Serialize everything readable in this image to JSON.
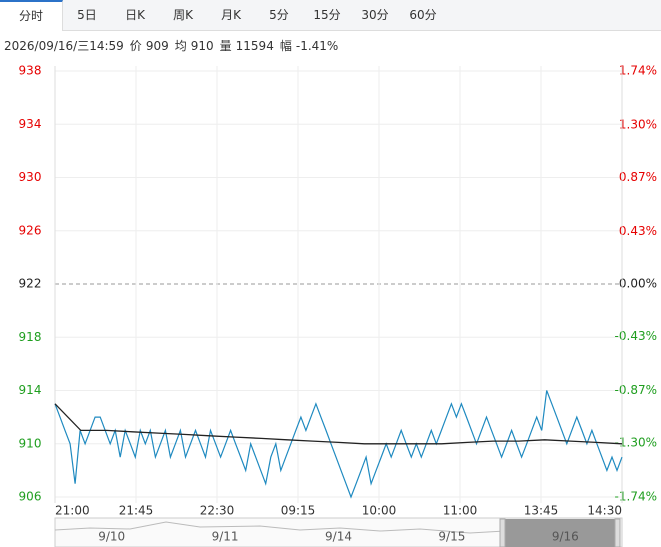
{
  "tabs": [
    "分时",
    "5日",
    "日K",
    "周K",
    "月K",
    "5分",
    "15分",
    "30分",
    "60分"
  ],
  "info": {
    "datetime": "2026/09/16/三14:59",
    "fields": [
      {
        "label": "价",
        "value": 909
      },
      {
        "label": "均",
        "value": 910
      },
      {
        "label": "量",
        "value": 11594
      },
      {
        "label": "幅",
        "value": "-1.41%"
      }
    ]
  },
  "chart_data": {
    "type": "line",
    "ylim": [
      906,
      938
    ],
    "yticks": [
      938,
      934,
      930,
      926,
      922,
      918,
      914,
      910,
      906
    ],
    "y2lim": [
      -1.74,
      1.74
    ],
    "y2ticks": [
      {
        "value": 1.74,
        "label": "1.74%"
      },
      {
        "value": 1.3,
        "label": "1.30%"
      },
      {
        "value": 0.87,
        "label": "0.87%"
      },
      {
        "value": 0.43,
        "label": "0.43%"
      },
      {
        "value": 0,
        "label": "0.00%"
      },
      {
        "value": -0.43,
        "label": "-0.43%"
      },
      {
        "value": -0.87,
        "label": "-0.87%"
      },
      {
        "value": -1.3,
        "label": "-1.30%"
      },
      {
        "value": -1.74,
        "label": "-1.74%"
      }
    ],
    "up_color": "#e60000",
    "down_color": "#1f9e1f",
    "xticks": [
      "21:00",
      "21:45",
      "22:30",
      "09:15",
      "10:00",
      "11:00",
      "13:45",
      "14:30"
    ],
    "series": [
      {
        "name": "价",
        "color": "#1f8ac0",
        "values": [
          913,
          912,
          911,
          910,
          907,
          911,
          910,
          911,
          912,
          912,
          911,
          910,
          911,
          909,
          911,
          910,
          909,
          911,
          910,
          911,
          909,
          910,
          911,
          909,
          910,
          911,
          909,
          910,
          911,
          910,
          909,
          911,
          910,
          909,
          910,
          911,
          910,
          909,
          908,
          910,
          909,
          908,
          907,
          909,
          910,
          908,
          909,
          910,
          911,
          912,
          911,
          912,
          913,
          912,
          911,
          910,
          909,
          908,
          907,
          906,
          907,
          908,
          909,
          907,
          908,
          909,
          910,
          909,
          910,
          911,
          910,
          909,
          910,
          909,
          910,
          911,
          910,
          911,
          912,
          913,
          912,
          913,
          912,
          911,
          910,
          911,
          912,
          911,
          910,
          909,
          910,
          911,
          910,
          909,
          910,
          911,
          912,
          911,
          914,
          913,
          912,
          911,
          910,
          911,
          912,
          911,
          910,
          911,
          910,
          909,
          908,
          909,
          908,
          909
        ]
      },
      {
        "name": "均",
        "color": "#222222",
        "values": [
          913,
          911,
          911,
          910.9,
          910.8,
          910.7,
          910.6,
          910.5,
          910.4,
          910.3,
          910.2,
          910.1,
          910,
          910,
          910,
          910,
          910.1,
          910.2,
          910.2,
          910.3,
          910.2,
          910.1,
          910
        ]
      }
    ]
  },
  "navigator": {
    "dates": [
      "9/10",
      "9/11",
      "9/14",
      "9/15",
      "9/16"
    ]
  }
}
